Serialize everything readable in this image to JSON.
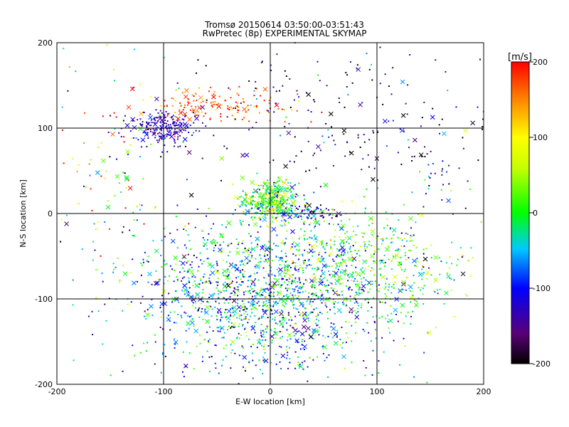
{
  "chart_data": {
    "type": "scatter",
    "title": "Tromsø 20150614 03:50:00-03:51:43",
    "subtitle": "RwPretec (8p) EXPERIMENTAL SKYMAP",
    "xlabel": "E-W location [km]",
    "ylabel": "N-S location [km]",
    "xlim": [
      -200,
      200
    ],
    "ylim": [
      -200,
      200
    ],
    "xticks": [
      "-200",
      "-100",
      "0",
      "100",
      "200"
    ],
    "yticks": [
      "-200",
      "-100",
      "0",
      "100",
      "200"
    ],
    "grid": true,
    "colorbar": {
      "label": "[m/s]",
      "range": [
        -200,
        200
      ],
      "ticks": [
        "-200",
        "-100",
        "0",
        "100",
        "200"
      ]
    },
    "clusters": [
      {
        "cx": -5,
        "cy": -95,
        "sx": 60,
        "sy": 45,
        "n": 1400,
        "vmean": -60,
        "vsd": 70
      },
      {
        "cx": 80,
        "cy": -60,
        "sx": 50,
        "sy": 35,
        "n": 500,
        "vmean": 10,
        "vsd": 60
      },
      {
        "cx": -100,
        "cy": 100,
        "sx": 15,
        "sy": 10,
        "n": 200,
        "vmean": -130,
        "vsd": 20
      },
      {
        "cx": -55,
        "cy": 125,
        "sx": 35,
        "sy": 10,
        "n": 150,
        "vmean": 170,
        "vsd": 30
      },
      {
        "cx": 0,
        "cy": 15,
        "sx": 12,
        "sy": 12,
        "n": 400,
        "vmean": 20,
        "vsd": 60
      },
      {
        "cx": 40,
        "cy": 0,
        "sx": 15,
        "sy": 5,
        "n": 80,
        "vmean": -100,
        "vsd": 80
      },
      {
        "cx": 50,
        "cy": 120,
        "sx": 80,
        "sy": 45,
        "n": 200,
        "vmean": -150,
        "vsd": 80
      },
      {
        "cx": -150,
        "cy": 50,
        "sx": 40,
        "sy": 60,
        "n": 120,
        "vmean": 20,
        "vsd": 120
      },
      {
        "cx": 150,
        "cy": 50,
        "sx": 30,
        "sy": 60,
        "n": 60,
        "vmean": -150,
        "vsd": 80
      }
    ]
  }
}
